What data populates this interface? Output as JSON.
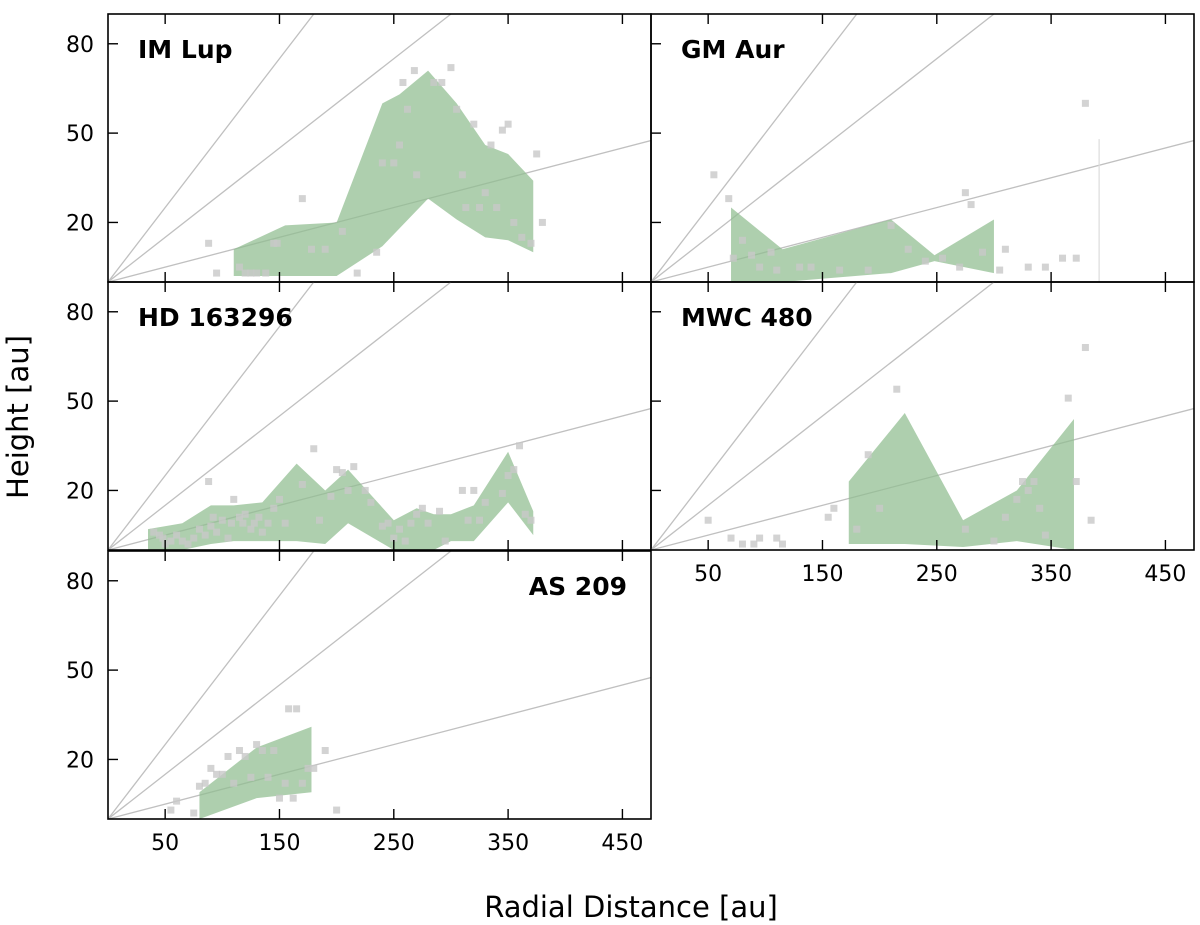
{
  "chart_data": {
    "type": "area",
    "xlabel": "Radial Distance [au]",
    "ylabel": "Height [au]",
    "xlim": [
      0,
      475
    ],
    "ylim": [
      0,
      90
    ],
    "xticks": [
      50,
      150,
      250,
      350,
      450
    ],
    "xtick_labels": [
      "50",
      "150",
      "250",
      "350",
      "450"
    ],
    "yticks": [
      20,
      50,
      80
    ],
    "ytick_labels": [
      "20",
      "50",
      "80"
    ],
    "reference_slopes": [
      0.1,
      0.3,
      0.5
    ],
    "colors": {
      "band": "#8fbc8f",
      "points": "#c8c8c8",
      "lines": "#c0c0c0",
      "axes": "#000000"
    },
    "panels": [
      {
        "name": "IM Lup",
        "band": [
          {
            "x": 110,
            "lo": 2,
            "hi": 11
          },
          {
            "x": 155,
            "lo": 2,
            "hi": 19
          },
          {
            "x": 200,
            "lo": 2,
            "hi": 20
          },
          {
            "x": 240,
            "lo": 12,
            "hi": 60
          },
          {
            "x": 255,
            "lo": 18,
            "hi": 63
          },
          {
            "x": 280,
            "lo": 28,
            "hi": 71
          },
          {
            "x": 305,
            "lo": 21,
            "hi": 60
          },
          {
            "x": 330,
            "lo": 15,
            "hi": 46
          },
          {
            "x": 350,
            "lo": 14,
            "hi": 43
          },
          {
            "x": 372,
            "lo": 10,
            "hi": 34
          }
        ],
        "points": [
          [
            88,
            13
          ],
          [
            95,
            3
          ],
          [
            115,
            5
          ],
          [
            120,
            3
          ],
          [
            125,
            3
          ],
          [
            130,
            3
          ],
          [
            138,
            3
          ],
          [
            145,
            13
          ],
          [
            148,
            13
          ],
          [
            170,
            28
          ],
          [
            178,
            11
          ],
          [
            190,
            11
          ],
          [
            205,
            17
          ],
          [
            218,
            3
          ],
          [
            235,
            10
          ],
          [
            240,
            40
          ],
          [
            250,
            40
          ],
          [
            255,
            46
          ],
          [
            258,
            67
          ],
          [
            262,
            58
          ],
          [
            268,
            71
          ],
          [
            270,
            36
          ],
          [
            285,
            67
          ],
          [
            292,
            67
          ],
          [
            300,
            72
          ],
          [
            305,
            58
          ],
          [
            310,
            36
          ],
          [
            313,
            25
          ],
          [
            320,
            53
          ],
          [
            325,
            25
          ],
          [
            330,
            30
          ],
          [
            335,
            46
          ],
          [
            340,
            25
          ],
          [
            345,
            51
          ],
          [
            350,
            53
          ],
          [
            355,
            20
          ],
          [
            362,
            15
          ],
          [
            370,
            13
          ],
          [
            375,
            43
          ],
          [
            380,
            20
          ]
        ]
      },
      {
        "name": "GM Aur",
        "band": [
          {
            "x": 70,
            "lo": 0,
            "hi": 25
          },
          {
            "x": 115,
            "lo": 0,
            "hi": 11
          },
          {
            "x": 210,
            "lo": 3,
            "hi": 21
          },
          {
            "x": 248,
            "lo": 7,
            "hi": 9
          },
          {
            "x": 300,
            "lo": 3,
            "hi": 21
          }
        ],
        "points": [
          [
            55,
            36
          ],
          [
            68,
            28
          ],
          [
            72,
            8
          ],
          [
            80,
            14
          ],
          [
            88,
            9
          ],
          [
            95,
            5
          ],
          [
            105,
            10
          ],
          [
            110,
            4
          ],
          [
            130,
            5
          ],
          [
            140,
            5
          ],
          [
            165,
            4
          ],
          [
            190,
            4
          ],
          [
            210,
            19
          ],
          [
            225,
            11
          ],
          [
            240,
            7
          ],
          [
            255,
            8
          ],
          [
            270,
            5
          ],
          [
            275,
            30
          ],
          [
            280,
            26
          ],
          [
            290,
            10
          ],
          [
            305,
            4
          ],
          [
            310,
            11
          ],
          [
            330,
            5
          ],
          [
            345,
            5
          ],
          [
            360,
            8
          ],
          [
            372,
            8
          ],
          [
            380,
            60
          ]
        ],
        "guides": [
          {
            "x": 392,
            "lo": 0,
            "hi": 48
          }
        ]
      },
      {
        "name": "HD 163296",
        "band": [
          {
            "x": 35,
            "lo": 0,
            "hi": 7
          },
          {
            "x": 65,
            "lo": 0,
            "hi": 9
          },
          {
            "x": 90,
            "lo": 2,
            "hi": 15
          },
          {
            "x": 110,
            "lo": 3,
            "hi": 15
          },
          {
            "x": 135,
            "lo": 3,
            "hi": 16
          },
          {
            "x": 165,
            "lo": 3,
            "hi": 29
          },
          {
            "x": 190,
            "lo": 2,
            "hi": 20
          },
          {
            "x": 210,
            "lo": 9,
            "hi": 27
          },
          {
            "x": 250,
            "lo": 0,
            "hi": 10
          },
          {
            "x": 270,
            "lo": 0,
            "hi": 14
          },
          {
            "x": 285,
            "lo": 0,
            "hi": 12
          },
          {
            "x": 300,
            "lo": 3,
            "hi": 12
          },
          {
            "x": 320,
            "lo": 3,
            "hi": 15
          },
          {
            "x": 350,
            "lo": 16,
            "hi": 33
          },
          {
            "x": 372,
            "lo": 5,
            "hi": 13
          }
        ],
        "points": [
          [
            40,
            6
          ],
          [
            45,
            5
          ],
          [
            48,
            4
          ],
          [
            50,
            2
          ],
          [
            55,
            3
          ],
          [
            60,
            5
          ],
          [
            65,
            3
          ],
          [
            70,
            2
          ],
          [
            75,
            4
          ],
          [
            80,
            7
          ],
          [
            85,
            5
          ],
          [
            88,
            23
          ],
          [
            90,
            8
          ],
          [
            92,
            11
          ],
          [
            95,
            6
          ],
          [
            100,
            10
          ],
          [
            105,
            4
          ],
          [
            108,
            9
          ],
          [
            110,
            17
          ],
          [
            115,
            11
          ],
          [
            118,
            9
          ],
          [
            120,
            12
          ],
          [
            125,
            7
          ],
          [
            128,
            9
          ],
          [
            132,
            11
          ],
          [
            135,
            6
          ],
          [
            140,
            9
          ],
          [
            145,
            14
          ],
          [
            150,
            17
          ],
          [
            155,
            9
          ],
          [
            170,
            22
          ],
          [
            180,
            34
          ],
          [
            185,
            10
          ],
          [
            195,
            18
          ],
          [
            200,
            27
          ],
          [
            205,
            26
          ],
          [
            210,
            20
          ],
          [
            215,
            28
          ],
          [
            225,
            20
          ],
          [
            230,
            16
          ],
          [
            240,
            8
          ],
          [
            245,
            9
          ],
          [
            250,
            4
          ],
          [
            255,
            7
          ],
          [
            260,
            3
          ],
          [
            265,
            9
          ],
          [
            270,
            12
          ],
          [
            275,
            14
          ],
          [
            280,
            9
          ],
          [
            290,
            13
          ],
          [
            295,
            3
          ],
          [
            310,
            20
          ],
          [
            315,
            10
          ],
          [
            320,
            20
          ],
          [
            325,
            10
          ],
          [
            330,
            16
          ],
          [
            345,
            19
          ],
          [
            350,
            25
          ],
          [
            355,
            27
          ],
          [
            360,
            35
          ],
          [
            365,
            12
          ],
          [
            370,
            10
          ]
        ]
      },
      {
        "name": "MWC 480",
        "band": [
          {
            "x": 173,
            "lo": 2,
            "hi": 23
          },
          {
            "x": 222,
            "lo": 2,
            "hi": 46
          },
          {
            "x": 273,
            "lo": 1,
            "hi": 10
          },
          {
            "x": 320,
            "lo": 3,
            "hi": 20
          },
          {
            "x": 370,
            "lo": 0,
            "hi": 44
          }
        ],
        "points": [
          [
            50,
            10
          ],
          [
            70,
            4
          ],
          [
            80,
            2
          ],
          [
            90,
            2
          ],
          [
            95,
            4
          ],
          [
            110,
            4
          ],
          [
            115,
            2
          ],
          [
            155,
            11
          ],
          [
            160,
            14
          ],
          [
            180,
            7
          ],
          [
            190,
            32
          ],
          [
            200,
            14
          ],
          [
            215,
            54
          ],
          [
            275,
            7
          ],
          [
            300,
            3
          ],
          [
            310,
            11
          ],
          [
            320,
            17
          ],
          [
            325,
            23
          ],
          [
            330,
            20
          ],
          [
            335,
            23
          ],
          [
            340,
            14
          ],
          [
            345,
            5
          ],
          [
            365,
            51
          ],
          [
            372,
            23
          ],
          [
            380,
            68
          ],
          [
            385,
            10
          ]
        ]
      },
      {
        "name": "AS 209",
        "band": [
          {
            "x": 80,
            "lo": 0,
            "hi": 9
          },
          {
            "x": 130,
            "lo": 7,
            "hi": 24
          },
          {
            "x": 178,
            "lo": 9,
            "hi": 31
          }
        ],
        "points": [
          [
            55,
            3
          ],
          [
            60,
            6
          ],
          [
            75,
            2
          ],
          [
            80,
            11
          ],
          [
            85,
            12
          ],
          [
            90,
            17
          ],
          [
            95,
            15
          ],
          [
            100,
            15
          ],
          [
            105,
            21
          ],
          [
            110,
            12
          ],
          [
            115,
            23
          ],
          [
            120,
            21
          ],
          [
            125,
            14
          ],
          [
            130,
            25
          ],
          [
            135,
            23
          ],
          [
            140,
            14
          ],
          [
            145,
            23
          ],
          [
            150,
            7
          ],
          [
            155,
            12
          ],
          [
            158,
            37
          ],
          [
            162,
            7
          ],
          [
            165,
            37
          ],
          [
            170,
            12
          ],
          [
            175,
            17
          ],
          [
            180,
            17
          ],
          [
            190,
            23
          ],
          [
            200,
            3
          ]
        ]
      }
    ]
  }
}
